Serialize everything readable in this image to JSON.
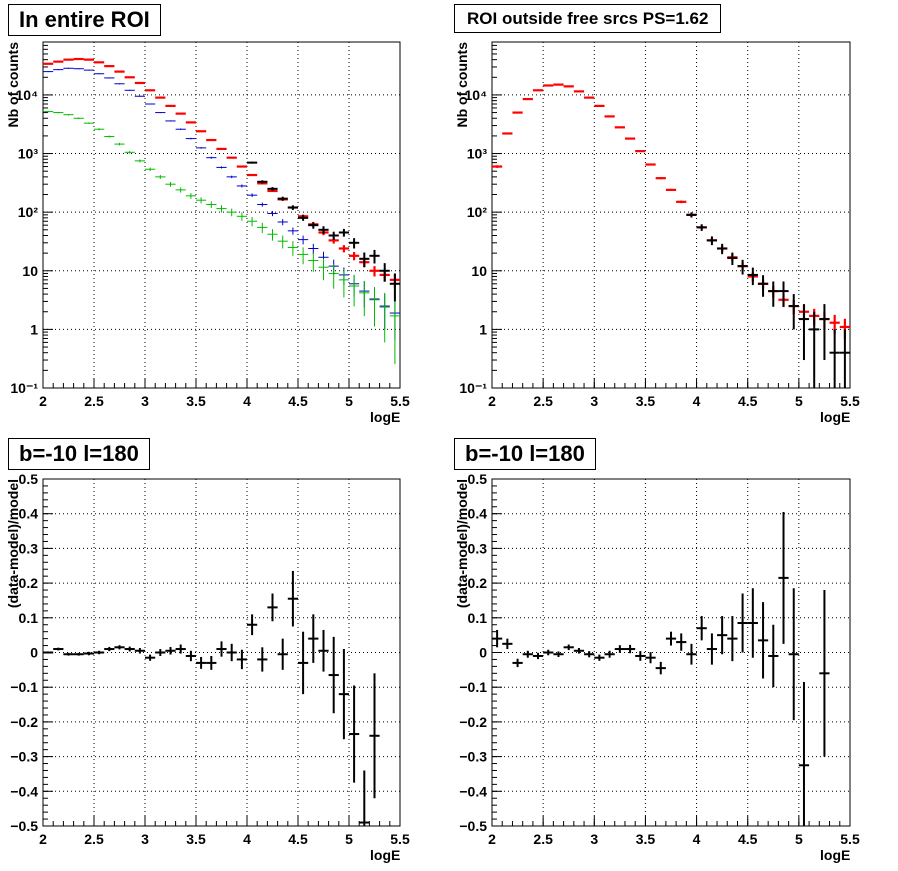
{
  "chart_data": [
    {
      "type": "scatter",
      "title": "In entire ROI",
      "xlabel": "logE",
      "ylabel": "Nb of counts",
      "xlim": [
        2,
        5.5
      ],
      "ylim": [
        0.1,
        80000
      ],
      "yscale": "log",
      "grid": true,
      "xticks": [
        "2",
        "2.5",
        "3",
        "3.5",
        "4",
        "4.5",
        "5",
        "5.5"
      ],
      "yticks": [
        "10⁻¹",
        "1",
        "10",
        "10²",
        "10³",
        "10⁴"
      ],
      "series": [
        {
          "color": "#ff0000",
          "x": [
            2.05,
            2.15,
            2.25,
            2.35,
            2.45,
            2.55,
            2.65,
            2.75,
            2.85,
            2.95,
            3.05,
            3.15,
            3.25,
            3.35,
            3.45,
            3.55,
            3.65,
            3.75,
            3.85,
            3.95,
            4.05,
            4.15,
            4.25,
            4.35,
            4.45,
            4.55,
            4.65,
            4.75,
            4.85,
            4.95,
            5.05,
            5.15,
            5.25,
            5.35,
            5.45
          ],
          "y": [
            34000,
            37000,
            40000,
            41000,
            40000,
            36000,
            31000,
            25000,
            20000,
            16000,
            12000,
            9000,
            6500,
            4800,
            3400,
            2400,
            1700,
            1200,
            850,
            600,
            430,
            310,
            230,
            165,
            120,
            85,
            62,
            45,
            33,
            24,
            18,
            14,
            10,
            8.5,
            7
          ],
          "yerr_rel": [
            0.02,
            0.02,
            0.02,
            0.02,
            0.02,
            0.02,
            0.02,
            0.02,
            0.02,
            0.02,
            0.02,
            0.02,
            0.02,
            0.02,
            0.02,
            0.02,
            0.02,
            0.02,
            0.02,
            0.03,
            0.03,
            0.03,
            0.04,
            0.05,
            0.06,
            0.07,
            0.08,
            0.1,
            0.12,
            0.14,
            0.16,
            0.18,
            0.2,
            0.22,
            0.25
          ]
        },
        {
          "color": "#0000cc",
          "x": [
            2.05,
            2.15,
            2.25,
            2.35,
            2.45,
            2.55,
            2.65,
            2.75,
            2.85,
            2.95,
            3.05,
            3.15,
            3.25,
            3.35,
            3.45,
            3.55,
            3.65,
            3.75,
            3.85,
            3.95,
            4.05,
            4.15,
            4.25,
            4.35,
            4.45,
            4.55,
            4.65,
            4.75,
            4.85,
            4.95,
            5.05,
            5.15,
            5.25,
            5.35,
            5.45
          ],
          "y": [
            25000,
            27000,
            28500,
            28000,
            26500,
            23000,
            19500,
            15500,
            12000,
            9500,
            7000,
            5000,
            3600,
            2600,
            1800,
            1250,
            850,
            580,
            400,
            280,
            195,
            135,
            95,
            68,
            48,
            34,
            24,
            17,
            12,
            8.5,
            6,
            4.5,
            3.3,
            2.5,
            1.9
          ],
          "yerr_rel": [
            0.02,
            0.02,
            0.02,
            0.02,
            0.02,
            0.02,
            0.02,
            0.02,
            0.02,
            0.02,
            0.02,
            0.02,
            0.02,
            0.03,
            0.03,
            0.03,
            0.04,
            0.04,
            0.05,
            0.06,
            0.07,
            0.08,
            0.1,
            0.12,
            0.14,
            0.17,
            0.2,
            0.24,
            0.29,
            0.34,
            0.4,
            0.47,
            0.55,
            0.6,
            0.65
          ]
        },
        {
          "color": "#00bb00",
          "x": [
            2.05,
            2.15,
            2.25,
            2.35,
            2.45,
            2.55,
            2.65,
            2.75,
            2.85,
            2.95,
            3.05,
            3.15,
            3.25,
            3.35,
            3.45,
            3.55,
            3.65,
            3.75,
            3.85,
            3.95,
            4.05,
            4.15,
            4.25,
            4.35,
            4.45,
            4.55,
            4.65,
            4.75,
            4.85,
            4.95,
            5.05,
            5.15,
            5.25,
            5.35,
            5.45
          ],
          "y": [
            5200,
            5000,
            4600,
            4000,
            3300,
            2600,
            1950,
            1450,
            1050,
            750,
            540,
            400,
            300,
            240,
            190,
            160,
            135,
            115,
            100,
            85,
            70,
            55,
            42,
            32,
            25,
            19,
            15,
            11.5,
            9,
            7,
            5.5,
            4.2,
            3.2,
            2.4,
            1.7
          ],
          "yerr_rel": [
            0.03,
            0.03,
            0.03,
            0.03,
            0.03,
            0.04,
            0.04,
            0.05,
            0.05,
            0.06,
            0.07,
            0.08,
            0.09,
            0.1,
            0.11,
            0.12,
            0.13,
            0.14,
            0.15,
            0.16,
            0.18,
            0.2,
            0.22,
            0.25,
            0.28,
            0.32,
            0.36,
            0.4,
            0.45,
            0.5,
            0.55,
            0.6,
            0.65,
            0.75,
            0.85
          ]
        },
        {
          "color": "#000000",
          "x": [
            4.05,
            4.15,
            4.25,
            4.35,
            4.45,
            4.55,
            4.65,
            4.75,
            4.85,
            4.95,
            5.05,
            5.15,
            5.25,
            5.35,
            5.45
          ],
          "y": [
            700,
            330,
            250,
            170,
            120,
            80,
            60,
            50,
            40,
            45,
            30,
            16,
            18,
            10,
            6
          ],
          "yerr_rel": [
            0.04,
            0.06,
            0.07,
            0.08,
            0.09,
            0.11,
            0.13,
            0.15,
            0.16,
            0.15,
            0.2,
            0.28,
            0.26,
            0.35,
            0.5
          ]
        }
      ]
    },
    {
      "type": "scatter",
      "title": "ROI outside free srcs PS=1.62",
      "xlabel": "logE",
      "ylabel": "Nb of counts",
      "xlim": [
        2,
        5.5
      ],
      "ylim": [
        0.1,
        80000
      ],
      "yscale": "log",
      "grid": true,
      "xticks": [
        "2",
        "2.5",
        "3",
        "3.5",
        "4",
        "4.5",
        "5",
        "5.5"
      ],
      "yticks": [
        "10⁻¹",
        "1",
        "10",
        "10²",
        "10³",
        "10⁴"
      ],
      "series": [
        {
          "color": "#ff0000",
          "x": [
            2.05,
            2.15,
            2.25,
            2.35,
            2.45,
            2.55,
            2.65,
            2.75,
            2.85,
            2.95,
            3.05,
            3.15,
            3.25,
            3.35,
            3.45,
            3.55,
            3.65,
            3.75,
            3.85,
            3.95,
            4.05,
            4.15,
            4.25,
            4.35,
            4.45,
            4.55,
            4.65,
            4.75,
            4.85,
            4.95,
            5.05,
            5.15,
            5.25,
            5.35,
            5.45
          ],
          "y": [
            600,
            2200,
            5000,
            8500,
            12000,
            14500,
            15000,
            14000,
            11500,
            9000,
            6500,
            4300,
            2800,
            1800,
            1100,
            650,
            380,
            240,
            150,
            90,
            55,
            33,
            24,
            17,
            12,
            8,
            6,
            4.5,
            3.2,
            2.5,
            2,
            1.7,
            1.5,
            1.3,
            1.1
          ],
          "yerr_rel": [
            0.05,
            0.03,
            0.02,
            0.02,
            0.02,
            0.02,
            0.02,
            0.02,
            0.02,
            0.02,
            0.02,
            0.02,
            0.02,
            0.02,
            0.03,
            0.03,
            0.04,
            0.04,
            0.05,
            0.06,
            0.08,
            0.1,
            0.12,
            0.14,
            0.16,
            0.18,
            0.2,
            0.22,
            0.25,
            0.28,
            0.3,
            0.32,
            0.34,
            0.36,
            0.38
          ]
        },
        {
          "color": "#000000",
          "x": [
            3.95,
            4.05,
            4.15,
            4.25,
            4.35,
            4.45,
            4.55,
            4.65,
            4.75,
            4.85,
            4.95,
            5.05,
            5.15,
            5.25,
            5.35,
            5.45
          ],
          "y": [
            90,
            55,
            33,
            24,
            16.5,
            12,
            8.5,
            6,
            4.5,
            4.5,
            2.5,
            1.5,
            1,
            1.5,
            0.4,
            0.4
          ],
          "yerr_rel": [
            0.1,
            0.13,
            0.17,
            0.2,
            0.24,
            0.28,
            0.33,
            0.4,
            0.46,
            0.46,
            0.6,
            0.8,
            1,
            0.8,
            1.5,
            1.5
          ]
        }
      ]
    },
    {
      "type": "scatter",
      "title": "b=-10 l=180",
      "xlabel": "logE",
      "ylabel": "(data-model)/model",
      "xlim": [
        2,
        5.5
      ],
      "ylim": [
        -0.5,
        0.5
      ],
      "grid": true,
      "xticks": [
        "2",
        "2.5",
        "3",
        "3.5",
        "4",
        "4.5",
        "5",
        "5.5"
      ],
      "yticks": [
        "−0.5",
        "−0.4",
        "−0.3",
        "−0.2",
        "−0.1",
        "0",
        "0.1",
        "0.2",
        "0.3",
        "0.4",
        "0.5"
      ],
      "series": [
        {
          "color": "#000000",
          "x": [
            2.05,
            2.15,
            2.25,
            2.35,
            2.45,
            2.55,
            2.65,
            2.75,
            2.85,
            2.95,
            3.05,
            3.15,
            3.25,
            3.35,
            3.45,
            3.55,
            3.65,
            3.75,
            3.85,
            3.95,
            4.05,
            4.15,
            4.25,
            4.35,
            4.45,
            4.55,
            4.65,
            4.75,
            4.85,
            4.95,
            5.05,
            5.15,
            5.25
          ],
          "y": [
            0.0,
            0.01,
            -0.005,
            -0.005,
            -0.003,
            0.0,
            0.01,
            0.015,
            0.01,
            0.005,
            -0.015,
            0.0,
            0.005,
            0.01,
            -0.01,
            -0.03,
            -0.03,
            0.01,
            0.0,
            -0.02,
            0.08,
            -0.02,
            0.13,
            -0.005,
            0.155,
            -0.03,
            0.04,
            0.005,
            -0.065,
            -0.12,
            -0.235,
            -0.49,
            -0.24
          ],
          "yerr": [
            0.003,
            0.004,
            0.004,
            0.004,
            0.005,
            0.005,
            0.006,
            0.006,
            0.007,
            0.008,
            0.009,
            0.01,
            0.011,
            0.013,
            0.015,
            0.017,
            0.02,
            0.022,
            0.025,
            0.028,
            0.03,
            0.035,
            0.04,
            0.045,
            0.08,
            0.09,
            0.07,
            0.06,
            0.11,
            0.13,
            0.14,
            0.15,
            0.18
          ]
        }
      ]
    },
    {
      "type": "scatter",
      "title": "b=-10 l=180",
      "xlabel": "logE",
      "ylabel": "(data-model)/model",
      "xlim": [
        2,
        5.5
      ],
      "ylim": [
        -0.5,
        0.5
      ],
      "grid": true,
      "xticks": [
        "2",
        "2.5",
        "3",
        "3.5",
        "4",
        "4.5",
        "5",
        "5.5"
      ],
      "yticks": [
        "−0.5",
        "−0.4",
        "−0.3",
        "−0.2",
        "−0.1",
        "0",
        "0.1",
        "0.2",
        "0.3",
        "0.4",
        "0.5"
      ],
      "series": [
        {
          "color": "#000000",
          "x": [
            2.05,
            2.15,
            2.25,
            2.35,
            2.45,
            2.55,
            2.65,
            2.75,
            2.85,
            2.95,
            3.05,
            3.15,
            3.25,
            3.35,
            3.45,
            3.55,
            3.65,
            3.75,
            3.85,
            3.95,
            4.05,
            4.15,
            4.25,
            4.35,
            4.45,
            4.55,
            4.65,
            4.75,
            4.85,
            4.95,
            5.05,
            5.25
          ],
          "y": [
            0.04,
            0.025,
            -0.03,
            -0.005,
            -0.01,
            0.0,
            -0.005,
            0.015,
            0.005,
            -0.005,
            -0.015,
            -0.005,
            0.01,
            0.01,
            -0.01,
            -0.015,
            -0.045,
            0.04,
            0.03,
            -0.005,
            0.07,
            0.01,
            0.05,
            0.04,
            0.085,
            0.085,
            0.035,
            -0.01,
            0.215,
            -0.005,
            -0.325,
            -0.06
          ],
          "yerr": [
            0.025,
            0.015,
            0.012,
            0.01,
            0.009,
            0.008,
            0.008,
            0.008,
            0.008,
            0.009,
            0.009,
            0.01,
            0.011,
            0.012,
            0.014,
            0.016,
            0.018,
            0.02,
            0.025,
            0.03,
            0.035,
            0.045,
            0.055,
            0.065,
            0.085,
            0.1,
            0.11,
            0.09,
            0.19,
            0.19,
            0.24,
            0.24
          ]
        }
      ]
    }
  ]
}
